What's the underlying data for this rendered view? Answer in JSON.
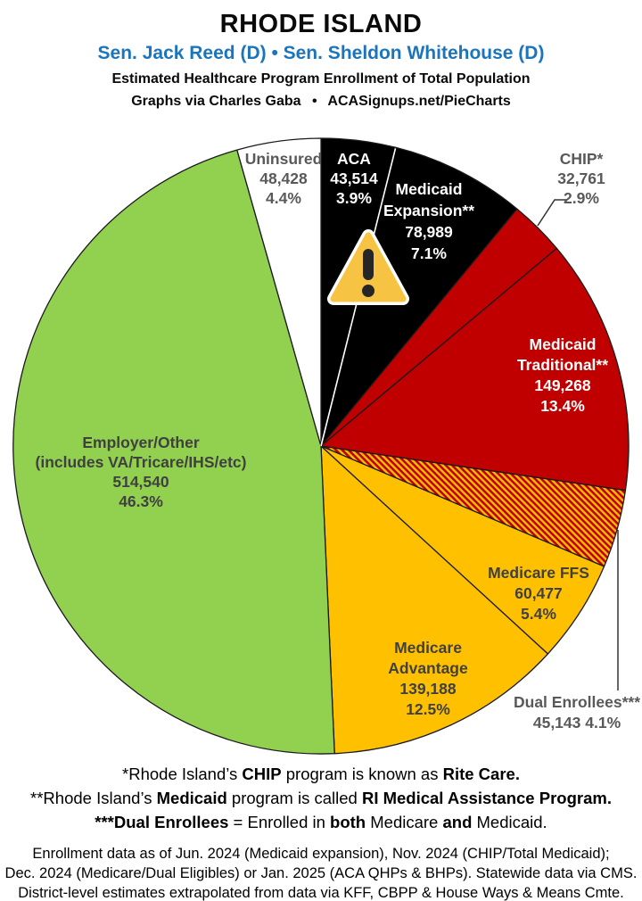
{
  "header": {
    "state": "RHODE ISLAND",
    "senators": "Sen. Jack Reed (D) • Sen. Sheldon Whitehouse (D)",
    "senators_color": "#1B75BC",
    "subtitle_line1": "Estimated Healthcare Program Enrollment of Total Population",
    "subtitle_line2": "Graphs via Charles Gaba  •  ACASignups.net/PieCharts"
  },
  "chart_data": {
    "type": "pie",
    "title": "Estimated Healthcare Program Enrollment of Total Population",
    "start_at": "12-o'clock, clockwise",
    "outline_color": "#1a1a1a",
    "hatch_colors": {
      "base": "#C00000",
      "stripe": "#FFC000"
    },
    "slices": [
      {
        "label": "ACA",
        "value": 43514,
        "pct": 3.9,
        "fill": "#000000",
        "text_color": "#FFFFFF",
        "lines": [
          "ACA",
          "43,514",
          "3.9%"
        ]
      },
      {
        "label": "Medicaid Expansion**",
        "value": 78989,
        "pct": 7.1,
        "fill": "#000000",
        "text_color": "#FFFFFF",
        "lines": [
          "Medicaid",
          "Expansion**",
          "78,989",
          "7.1%"
        ]
      },
      {
        "label": "CHIP*",
        "value": 32761,
        "pct": 2.9,
        "fill": "#C00000",
        "text_color": "#595959",
        "lines": [
          "CHIP*",
          "32,761",
          "2.9%"
        ],
        "label_outside": true
      },
      {
        "label": "Medicaid Traditional**",
        "value": 149268,
        "pct": 13.4,
        "fill": "#C00000",
        "text_color": "#FFFFFF",
        "lines": [
          "Medicaid",
          "Traditional**",
          "149,268",
          "13.4%"
        ]
      },
      {
        "label": "Dual Enrollees***",
        "value": 45143,
        "pct": 4.1,
        "fill": "hatch",
        "text_color": "#595959",
        "lines": [
          "Dual Enrollees***",
          "45,143 4.1%"
        ],
        "label_outside": true
      },
      {
        "label": "Medicare FFS",
        "value": 60477,
        "pct": 5.4,
        "fill": "#FFC000",
        "text_color": "#404040",
        "lines": [
          "Medicare FFS",
          "60,477",
          "5.4%"
        ]
      },
      {
        "label": "Medicare Advantage",
        "value": 139188,
        "pct": 12.5,
        "fill": "#FFC000",
        "text_color": "#404040",
        "lines": [
          "Medicare",
          "Advantage",
          "139,188",
          "12.5%"
        ]
      },
      {
        "label": "Employer/Other (includes VA/Tricare/IHS/etc)",
        "value": 514540,
        "pct": 46.3,
        "fill": "#92D050",
        "text_color": "#404040",
        "lines": [
          "Employer/Other",
          "(includes VA/Tricare/IHS/etc)",
          "514,540",
          "46.3%"
        ]
      },
      {
        "label": "Uninsured",
        "value": 48428,
        "pct": 4.4,
        "fill": "#FFFFFF",
        "text_color": "#595959",
        "lines": [
          "Uninsured",
          "48,428",
          "4.4%"
        ]
      }
    ],
    "warning_icon": {
      "name": "warning-triangle-icon",
      "fill": "#F6C343",
      "glyph_color": "#262626",
      "border_color": "#FFFFFF"
    }
  },
  "footnotes": [
    [
      {
        "t": "*Rhode Island’s ",
        "b": false
      },
      {
        "t": "CHIP",
        "b": true
      },
      {
        "t": " program is known as ",
        "b": false
      },
      {
        "t": "Rite Care.",
        "b": true
      }
    ],
    [
      {
        "t": "**Rhode Island’s ",
        "b": false
      },
      {
        "t": "Medicaid",
        "b": true
      },
      {
        "t": " program is called ",
        "b": false
      },
      {
        "t": "RI Medical Assistance Program.",
        "b": true
      }
    ],
    [
      {
        "t": "***Dual Enrollees",
        "b": true
      },
      {
        "t": " = Enrolled in ",
        "b": false
      },
      {
        "t": "both",
        "b": true
      },
      {
        "t": " Medicare ",
        "b": false
      },
      {
        "t": "and",
        "b": true
      },
      {
        "t": " Medicaid.",
        "b": false
      }
    ]
  ],
  "source_note": [
    "Enrollment data as of Jun. 2024 (Medicaid expansion), Nov. 2024 (CHIP/Total Medicaid);",
    "Dec. 2024 (Medicare/Dual Eligibles) or Jan. 2025 (ACA QHPs & BHPs). Statewide data via CMS.",
    "District-level estimates extrapolated from data via KFF, CBPP & House Ways & Means Cmte."
  ]
}
